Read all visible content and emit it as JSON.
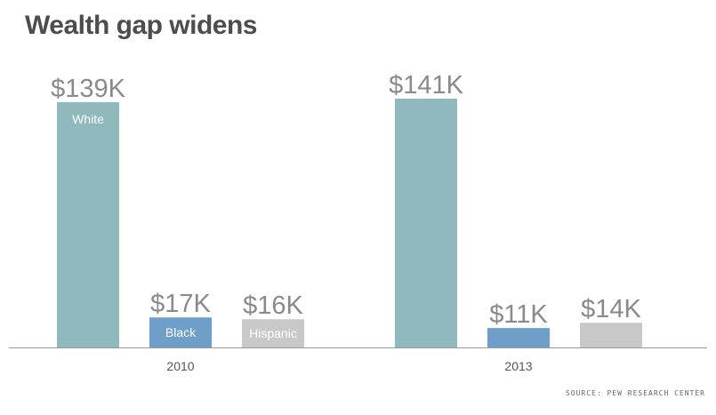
{
  "title": "Wealth gap widens",
  "source": "SOURCE: PEW RESEARCH CENTER",
  "colors": {
    "White": "#8fb9bd",
    "Black": "#6d9fc9",
    "Hispanic": "#c8c8c8",
    "value_text": "#8a8a8a",
    "axis": "#999999",
    "tick_text": "#555555",
    "bar_label_text": "#ffffff"
  },
  "chart_data": {
    "type": "bar",
    "title": "Wealth gap widens",
    "categories": [
      "2010",
      "2013"
    ],
    "series": [
      {
        "name": "White",
        "values": [
          139,
          141
        ],
        "value_labels": [
          "$139K",
          "$141K"
        ]
      },
      {
        "name": "Black",
        "values": [
          17,
          11
        ],
        "value_labels": [
          "$17K",
          "$11K"
        ]
      },
      {
        "name": "Hispanic",
        "values": [
          16,
          14
        ],
        "value_labels": [
          "$16K",
          "$14K"
        ]
      }
    ],
    "in_bar_labels": [
      "White",
      "Black",
      "Hispanic"
    ],
    "in_bar_label_category": "2010",
    "unit": "thousands of dollars",
    "ylim": [
      0,
      141
    ],
    "xlabel": "",
    "ylabel": "",
    "grid": false,
    "legend": "none"
  }
}
